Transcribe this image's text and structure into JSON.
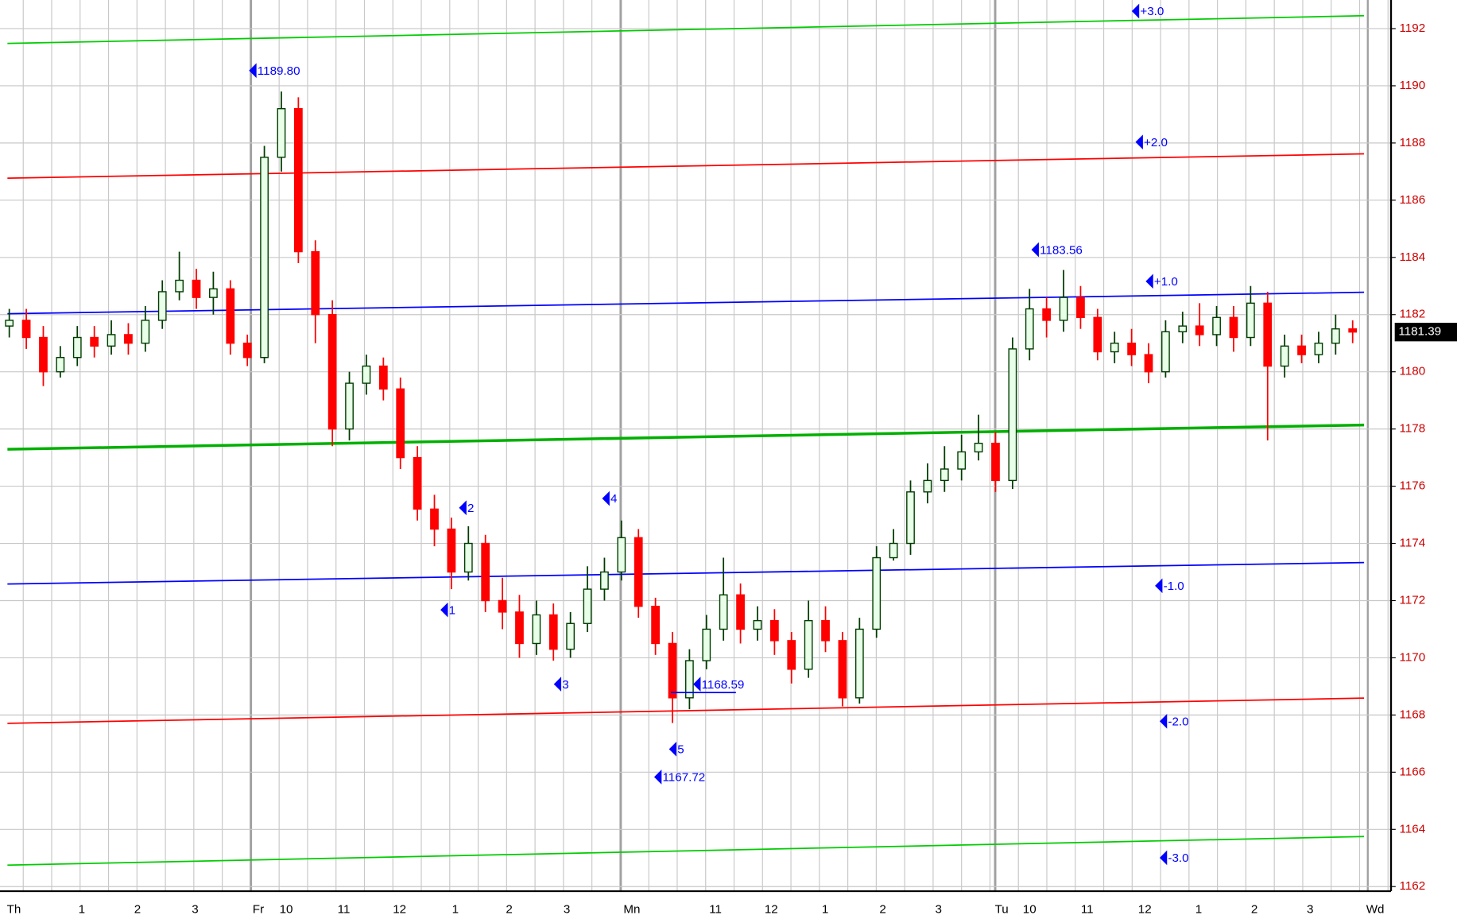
{
  "chart_data": {
    "type": "candlestick",
    "ylim": [
      1161.84,
      1193.0
    ],
    "yticks": [
      1162,
      1164,
      1166,
      1168,
      1170,
      1172,
      1174,
      1176,
      1178,
      1180,
      1182,
      1184,
      1186,
      1188,
      1190,
      1192
    ],
    "grid": true,
    "x_labels": [
      "Th",
      "1",
      "2",
      "3",
      "Fr",
      "10",
      "11",
      "12",
      "1",
      "2",
      "3",
      "Mn",
      "11",
      "12",
      "1",
      "2",
      "3",
      "Tu",
      "10",
      "11",
      "12",
      "1",
      "2",
      "3",
      "Wd"
    ],
    "up_color": "#003c00",
    "down_color": "#ff0000",
    "open": [
      1181.6,
      1181.8,
      1181.2,
      1180.0,
      1180.5,
      1181.2,
      1180.9,
      1181.3,
      1181.0,
      1181.8,
      1182.8,
      1183.2,
      1182.6,
      1182.9,
      1181.0,
      1180.5,
      1187.5,
      1189.2,
      1184.2,
      1182.0,
      1178.0,
      1179.6,
      1180.2,
      1179.4,
      1177.0,
      1175.2,
      1174.5,
      1173.0,
      1174.0,
      1172.0,
      1171.6,
      1170.5,
      1171.5,
      1170.3,
      1171.2,
      1172.4,
      1173.0,
      1174.2,
      1171.8,
      1170.5,
      1168.6,
      1169.9,
      1171.0,
      1172.2,
      1171.0,
      1171.3,
      1170.6,
      1169.6,
      1171.3,
      1170.6,
      1168.6,
      1171.0,
      1173.5,
      1174.0,
      1175.8,
      1176.2,
      1176.6,
      1177.2,
      1177.5,
      1176.2,
      1180.8,
      1182.2,
      1181.8,
      1182.6,
      1181.9,
      1180.7,
      1181.0,
      1180.6,
      1180.0,
      1181.4,
      1181.6,
      1181.3,
      1181.9,
      1181.2,
      1182.4,
      1180.2,
      1180.9,
      1180.6,
      1181.0,
      1181.5
    ],
    "high": [
      1182.2,
      1182.2,
      1181.6,
      1180.9,
      1181.6,
      1181.6,
      1181.8,
      1181.7,
      1182.3,
      1183.2,
      1184.2,
      1183.6,
      1183.5,
      1183.2,
      1181.3,
      1187.9,
      1189.8,
      1189.6,
      1184.6,
      1182.5,
      1180.0,
      1180.6,
      1180.5,
      1179.8,
      1177.4,
      1175.7,
      1174.9,
      1174.6,
      1174.3,
      1172.8,
      1172.2,
      1172.0,
      1171.9,
      1171.6,
      1173.2,
      1173.5,
      1174.8,
      1174.5,
      1172.1,
      1170.9,
      1170.3,
      1171.5,
      1173.5,
      1172.6,
      1171.8,
      1171.7,
      1170.9,
      1172.0,
      1171.8,
      1170.9,
      1171.4,
      1173.9,
      1174.5,
      1176.2,
      1176.8,
      1177.4,
      1177.8,
      1178.5,
      1177.9,
      1181.2,
      1182.9,
      1182.6,
      1183.56,
      1183.0,
      1182.2,
      1181.4,
      1181.5,
      1181.0,
      1181.8,
      1182.1,
      1182.4,
      1182.3,
      1182.3,
      1183.0,
      1182.8,
      1181.3,
      1181.3,
      1181.4,
      1182.0,
      1181.8
    ],
    "low": [
      1181.2,
      1180.8,
      1179.5,
      1179.8,
      1180.2,
      1180.5,
      1180.6,
      1180.6,
      1180.7,
      1181.5,
      1182.5,
      1182.2,
      1182.0,
      1180.6,
      1180.2,
      1180.3,
      1187.0,
      1183.8,
      1181.0,
      1177.4,
      1177.6,
      1179.2,
      1179.0,
      1176.6,
      1174.8,
      1173.9,
      1172.4,
      1172.7,
      1171.6,
      1171.0,
      1170.0,
      1170.1,
      1169.9,
      1170.0,
      1170.9,
      1172.0,
      1172.7,
      1171.4,
      1170.1,
      1167.72,
      1168.2,
      1169.6,
      1170.6,
      1170.5,
      1170.6,
      1170.1,
      1169.1,
      1169.3,
      1170.2,
      1168.3,
      1168.4,
      1170.7,
      1173.4,
      1173.6,
      1175.4,
      1175.8,
      1176.2,
      1176.9,
      1175.8,
      1175.9,
      1180.4,
      1181.2,
      1181.4,
      1181.5,
      1180.4,
      1180.3,
      1180.2,
      1179.6,
      1179.8,
      1181.0,
      1180.9,
      1180.9,
      1180.7,
      1180.9,
      1177.6,
      1179.8,
      1180.3,
      1180.3,
      1180.6,
      1181.0
    ],
    "close": [
      1181.8,
      1181.2,
      1180.0,
      1180.5,
      1181.2,
      1180.9,
      1181.3,
      1181.0,
      1181.8,
      1182.8,
      1183.2,
      1182.6,
      1182.9,
      1181.0,
      1180.5,
      1187.5,
      1189.2,
      1184.2,
      1182.0,
      1178.0,
      1179.6,
      1180.2,
      1179.4,
      1177.0,
      1175.2,
      1174.5,
      1173.0,
      1174.0,
      1172.0,
      1171.6,
      1170.5,
      1171.5,
      1170.3,
      1171.2,
      1172.4,
      1173.0,
      1174.2,
      1171.8,
      1170.5,
      1168.6,
      1169.9,
      1171.0,
      1172.2,
      1171.0,
      1171.3,
      1170.6,
      1169.6,
      1171.3,
      1170.6,
      1168.6,
      1171.0,
      1173.5,
      1174.0,
      1175.8,
      1176.2,
      1176.6,
      1177.2,
      1177.5,
      1176.2,
      1180.8,
      1182.2,
      1181.8,
      1182.6,
      1181.9,
      1180.7,
      1181.0,
      1180.6,
      1180.0,
      1181.4,
      1181.6,
      1181.3,
      1181.9,
      1181.2,
      1182.4,
      1180.2,
      1180.9,
      1180.6,
      1181.0,
      1181.5,
      1181.39
    ],
    "lines": [
      {
        "color": "#00cc00",
        "values": [
          1191.48,
          1192.45
        ]
      },
      {
        "color": "#ff0000",
        "values": [
          1186.77,
          1187.62
        ]
      },
      {
        "color": "#0000ff",
        "values": [
          1182.03,
          1182.78
        ]
      },
      {
        "color": "#00b000",
        "values": [
          1177.29,
          1178.14
        ]
      },
      {
        "color": "#0000ff",
        "values": [
          1172.58,
          1173.33
        ]
      },
      {
        "color": "#ff0000",
        "values": [
          1167.71,
          1168.59
        ]
      },
      {
        "color": "#00cc00",
        "values": [
          1162.75,
          1163.75
        ]
      }
    ],
    "last_price": 1181.39,
    "annotations": [
      "+3.0",
      "1189.80",
      "+2.0",
      "1183.56",
      "+1.0",
      "2",
      "4",
      "1",
      "3",
      "1168.59",
      "5",
      "1167.72",
      "-1.0",
      "-2.0",
      "-3.0"
    ]
  }
}
